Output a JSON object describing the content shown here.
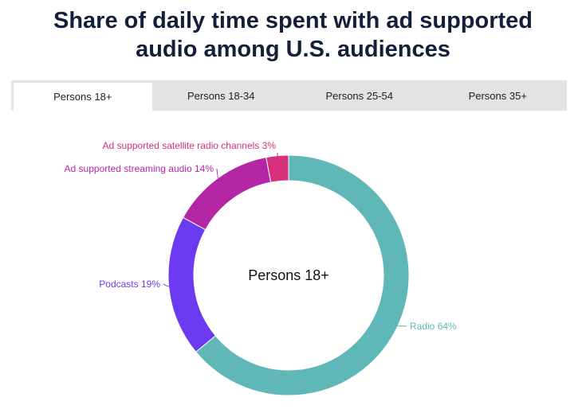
{
  "title_line1": "Share of daily time spent with ad supported",
  "title_line2": "audio among U.S. audiences",
  "tabs": [
    {
      "label": "Persons 18+",
      "active": true
    },
    {
      "label": "Persons 18-34",
      "active": false
    },
    {
      "label": "Persons 25-54",
      "active": false
    },
    {
      "label": "Persons 35+",
      "active": false
    }
  ],
  "chart_data": {
    "type": "pie",
    "variant": "donut",
    "center_label": "Persons 18+",
    "slices": [
      {
        "label": "Radio 64%",
        "value": 64,
        "color": "#5fb7b8"
      },
      {
        "label": "Podcasts 19%",
        "value": 19,
        "color": "#6c3af0"
      },
      {
        "label": "Ad supported streaming audio 14%",
        "value": 14,
        "color": "#b526a6"
      },
      {
        "label": "Ad supported satellite radio channels 3%",
        "value": 3,
        "color": "#d6317a"
      }
    ]
  }
}
